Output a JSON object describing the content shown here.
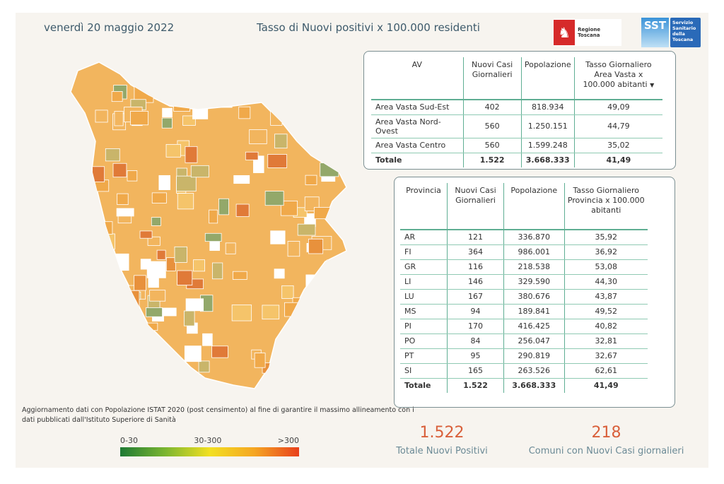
{
  "header": {
    "date": "venerdì 20 maggio 2022",
    "title": "Tasso di Nuovi positivi x 100.000 residenti",
    "logo_regione": "Regione Toscana",
    "logo_sst": "SST",
    "logo_sst_text": "Servizio Sanitario della Toscana"
  },
  "av_table": {
    "headers": [
      "AV",
      "Nuovi Casi Giornalieri",
      "Popolazione",
      "Tasso Giornaliero Area Vasta x 100.000 abitanti"
    ],
    "rows": [
      [
        "Area Vasta Sud-Est",
        "402",
        "818.934",
        "49,09"
      ],
      [
        "Area Vasta Nord-Ovest",
        "560",
        "1.250.151",
        "44,79"
      ],
      [
        "Area Vasta Centro",
        "560",
        "1.599.248",
        "35,02"
      ]
    ],
    "total": [
      "Totale",
      "1.522",
      "3.668.333",
      "41,49"
    ]
  },
  "prov_table": {
    "headers": [
      "Provincia",
      "Nuovi Casi Giornalieri",
      "Popolazione",
      "Tasso Giornaliero Provincia x 100.000 abitanti"
    ],
    "rows": [
      [
        "AR",
        "121",
        "336.870",
        "35,92"
      ],
      [
        "FI",
        "364",
        "986.001",
        "36,92"
      ],
      [
        "GR",
        "116",
        "218.538",
        "53,08"
      ],
      [
        "LI",
        "146",
        "329.590",
        "44,30"
      ],
      [
        "LU",
        "167",
        "380.676",
        "43,87"
      ],
      [
        "MS",
        "94",
        "189.841",
        "49,52"
      ],
      [
        "PI",
        "170",
        "416.425",
        "40,82"
      ],
      [
        "PO",
        "84",
        "256.047",
        "32,81"
      ],
      [
        "PT",
        "95",
        "290.819",
        "32,67"
      ],
      [
        "SI",
        "165",
        "263.526",
        "62,61"
      ]
    ],
    "total": [
      "Totale",
      "1.522",
      "3.668.333",
      "41,49"
    ]
  },
  "note": "Aggiornamento dati con Popolazione ISTAT 2020 (post censimento) al fine di garantire il massimo allineamento con i dati pubblicati dall'Istituto Superiore di Sanità",
  "legend": {
    "labels": [
      "0-30",
      "30-300",
      ">300"
    ],
    "colors": [
      "#1e7a34",
      "#f2e022",
      "#e8401c"
    ]
  },
  "kpis": [
    {
      "value": "1.522",
      "label": "Totale Nuovi Positivi"
    },
    {
      "value": "218",
      "label": "Comuni con Nuovi Casi giornalieri"
    }
  ]
}
